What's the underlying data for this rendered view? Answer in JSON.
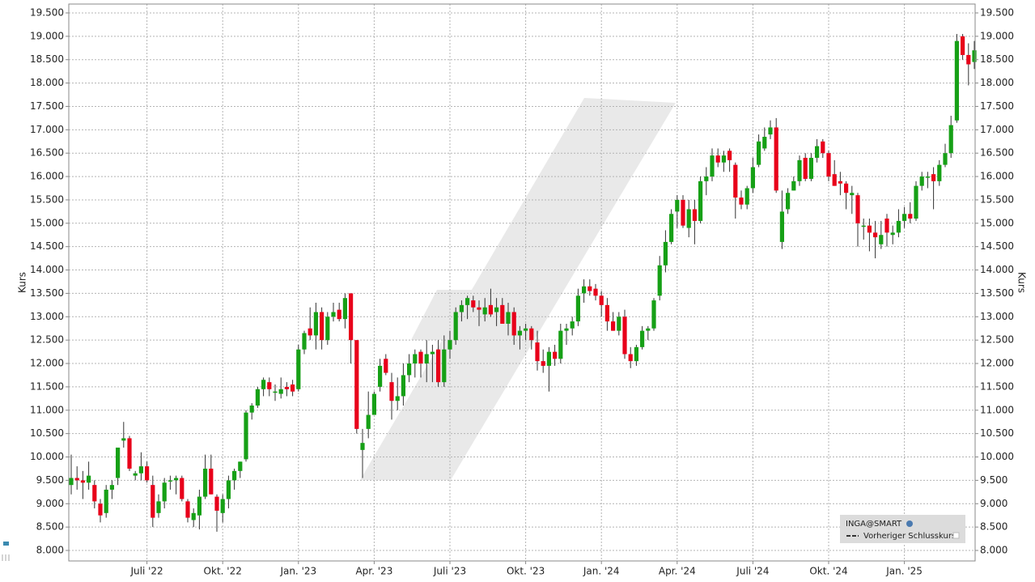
{
  "chart_data": {
    "type": "candlestick",
    "ylabel": "Kurs",
    "y2label": "Kurs",
    "series_name": "INGA@SMART",
    "reference_line_label": "Vorheriger Schlusskurs",
    "up_color": "#16a016",
    "down_color": "#e8001a",
    "grid": true,
    "ylim": [
      7775,
      19690
    ],
    "y2lim": [
      7775,
      19690
    ],
    "yticks": [
      {
        "value": 8000,
        "label": "8.000"
      },
      {
        "value": 8500,
        "label": "8.500"
      },
      {
        "value": 9000,
        "label": "9.000"
      },
      {
        "value": 9500,
        "label": "9.500"
      },
      {
        "value": 10000,
        "label": "10.000"
      },
      {
        "value": 10500,
        "label": "10.500"
      },
      {
        "value": 11000,
        "label": "11.000"
      },
      {
        "value": 11500,
        "label": "11.500"
      },
      {
        "value": 12000,
        "label": "12.000"
      },
      {
        "value": 12500,
        "label": "12.500"
      },
      {
        "value": 13000,
        "label": "13.000"
      },
      {
        "value": 13500,
        "label": "13.500"
      },
      {
        "value": 14000,
        "label": "14.000"
      },
      {
        "value": 14500,
        "label": "14.500"
      },
      {
        "value": 15000,
        "label": "15.000"
      },
      {
        "value": 15500,
        "label": "15.500"
      },
      {
        "value": 16000,
        "label": "16.000"
      },
      {
        "value": 16500,
        "label": "16.500"
      },
      {
        "value": 17000,
        "label": "17.000"
      },
      {
        "value": 17500,
        "label": "17.500"
      },
      {
        "value": 18000,
        "label": "18.000"
      },
      {
        "value": 18500,
        "label": "18.500"
      },
      {
        "value": 19000,
        "label": "19.000"
      },
      {
        "value": 19500,
        "label": "19.500"
      }
    ],
    "y2ticks": [
      {
        "value": 8000,
        "label": "8.000"
      },
      {
        "value": 8500,
        "label": "8.500"
      },
      {
        "value": 9000,
        "label": "9.000"
      },
      {
        "value": 9500,
        "label": "9.500"
      },
      {
        "value": 10000,
        "label": "10.000"
      },
      {
        "value": 10500,
        "label": "10.500"
      },
      {
        "value": 11000,
        "label": "11.000"
      },
      {
        "value": 11500,
        "label": "11.500"
      },
      {
        "value": 12000,
        "label": "12.000"
      },
      {
        "value": 12500,
        "label": "12.500"
      },
      {
        "value": 13000,
        "label": "13.000"
      },
      {
        "value": 13500,
        "label": "13.500"
      },
      {
        "value": 14000,
        "label": "14.000"
      },
      {
        "value": 14500,
        "label": "14.500"
      },
      {
        "value": 15000,
        "label": "15.000"
      },
      {
        "value": 15500,
        "label": "15.500"
      },
      {
        "value": 16000,
        "label": "16.000"
      },
      {
        "value": 16500,
        "label": "16.500"
      },
      {
        "value": 17000,
        "label": "17.000"
      },
      {
        "value": 17500,
        "label": "17.500"
      },
      {
        "value": 18000,
        "label": "18.000"
      },
      {
        "value": 18500,
        "label": "18.500"
      },
      {
        "value": 19000,
        "label": "19.000"
      },
      {
        "value": 19500,
        "label": "19.500"
      }
    ],
    "categories": [
      null,
      null,
      null,
      null,
      null,
      null,
      null,
      null,
      null,
      null,
      null,
      null,
      null,
      "Juli '22",
      null,
      null,
      null,
      null,
      null,
      null,
      null,
      null,
      null,
      null,
      null,
      null,
      "Okt. '22",
      null,
      null,
      null,
      null,
      null,
      null,
      null,
      null,
      null,
      null,
      null,
      null,
      "Jan. '23",
      null,
      null,
      null,
      null,
      null,
      null,
      null,
      null,
      null,
      null,
      null,
      null,
      "Apr. '23",
      null,
      null,
      null,
      null,
      null,
      null,
      null,
      null,
      null,
      null,
      null,
      null,
      "Juli '23",
      null,
      null,
      null,
      null,
      null,
      null,
      null,
      null,
      null,
      null,
      null,
      null,
      "Okt. '23",
      null,
      null,
      null,
      null,
      null,
      null,
      null,
      null,
      null,
      null,
      null,
      null,
      "Jan. '24",
      null,
      null,
      null,
      null,
      null,
      null,
      null,
      null,
      null,
      null,
      null,
      null,
      "Apr. '24",
      null,
      null,
      null,
      null,
      null,
      null,
      null,
      null,
      null,
      null,
      null,
      null,
      "Juli '24",
      null,
      null,
      null,
      null,
      null,
      null,
      null,
      null,
      null,
      null,
      null,
      null,
      "Okt. '24",
      null,
      null,
      null,
      null,
      null,
      null,
      null,
      null,
      null,
      null,
      null,
      null,
      "Jan. '25",
      null,
      null,
      null,
      null,
      null,
      null,
      null,
      null,
      null,
      null,
      null,
      null
    ],
    "open": [
      9400,
      9550,
      9500,
      9450,
      9400,
      9000,
      8800,
      9300,
      9550,
      10350,
      10400,
      9600,
      9650,
      9800,
      9400,
      8800,
      9050,
      9500,
      9500,
      9550,
      9050,
      8650,
      8750,
      9150,
      9750,
      9150,
      8800,
      9100,
      9500,
      9700,
      9950,
      10950,
      11100,
      11450,
      11600,
      11400,
      11350,
      11500,
      11550,
      11450,
      12300,
      12750,
      12600,
      13100,
      12500,
      13000,
      13150,
      12950,
      13500,
      12500,
      10150,
      10600,
      10900,
      11500,
      12100,
      11600,
      11200,
      11300,
      11750,
      12000,
      12250,
      12000,
      12200,
      12300,
      11600,
      12300,
      12500,
      13100,
      13250,
      13350,
      13200,
      13050,
      13250,
      13100,
      13250,
      12850,
      13100,
      12600,
      12700,
      12750,
      12450,
      12050,
      11950,
      12250,
      12100,
      12700,
      12750,
      12900,
      13500,
      13650,
      13600,
      13450,
      13250,
      12900,
      12700,
      13000,
      12200,
      12050,
      12350,
      12700,
      12750,
      13450,
      14100,
      14600,
      15250,
      15500,
      14900,
      15300,
      15050,
      15900,
      16000,
      16450,
      16300,
      16550,
      16250,
      15550,
      15400,
      15750,
      16250,
      16600,
      16900,
      17050,
      14600,
      15300,
      15700,
      15900,
      16400,
      15950,
      16400,
      16750,
      16500,
      16050,
      15900,
      15850,
      15600,
      15600,
      14950,
      14950,
      14800,
      14550,
      15100,
      14750,
      14800,
      15050,
      15200,
      15100,
      15800,
      16000,
      16050,
      15900,
      16250,
      16500,
      17200,
      19000,
      18600,
      18450
    ],
    "high": [
      10050,
      9800,
      9700,
      9900,
      9500,
      9100,
      9400,
      9500,
      10200,
      10750,
      10450,
      9700,
      10100,
      9900,
      9600,
      9200,
      9550,
      9600,
      9600,
      9600,
      9100,
      8900,
      9300,
      10050,
      10050,
      9200,
      9200,
      9600,
      9750,
      9900,
      11000,
      11150,
      11500,
      11700,
      11700,
      11550,
      11700,
      11600,
      11650,
      12400,
      12700,
      13200,
      13300,
      13200,
      13100,
      13300,
      13300,
      13500,
      13500,
      12500,
      10600,
      11400,
      11400,
      12100,
      12200,
      11800,
      11700,
      12000,
      12200,
      12300,
      12300,
      12500,
      12400,
      12500,
      12600,
      12700,
      13200,
      13350,
      13450,
      13450,
      13350,
      13400,
      13600,
      13400,
      13400,
      13300,
      13200,
      12800,
      12850,
      12800,
      12700,
      12300,
      12350,
      12400,
      12850,
      12850,
      13000,
      13600,
      13800,
      13800,
      13700,
      13550,
      13400,
      13100,
      13100,
      13150,
      12350,
      12400,
      12800,
      12800,
      13400,
      14300,
      14850,
      15300,
      15600,
      15600,
      15500,
      15500,
      16000,
      16200,
      16600,
      16600,
      16550,
      16600,
      16300,
      15700,
      15800,
      16400,
      16900,
      17050,
      17200,
      17250,
      15700,
      15750,
      16000,
      16450,
      16500,
      16500,
      16800,
      16800,
      16550,
      16350,
      16100,
      15900,
      15800,
      15650,
      15100,
      15100,
      15050,
      15050,
      15200,
      14950,
      15300,
      15350,
      15450,
      15900,
      16100,
      16100,
      16200,
      16350,
      16700,
      17300,
      19050,
      19050,
      18850,
      18900
    ],
    "low": [
      9200,
      9300,
      9100,
      9300,
      8900,
      8600,
      8700,
      9100,
      9400,
      10200,
      9700,
      9500,
      9500,
      9450,
      8500,
      8700,
      8900,
      9300,
      9200,
      9050,
      8600,
      8500,
      8450,
      9100,
      9200,
      8400,
      8600,
      8900,
      9300,
      9550,
      9900,
      10800,
      11050,
      11300,
      11300,
      11200,
      11250,
      11300,
      11300,
      11400,
      12200,
      12500,
      12300,
      12300,
      12400,
      12900,
      12900,
      12750,
      12000,
      10500,
      9550,
      10400,
      10900,
      11400,
      11750,
      10800,
      11000,
      11100,
      11600,
      11700,
      11700,
      11600,
      11600,
      11500,
      11500,
      12100,
      12400,
      12900,
      12950,
      13100,
      12800,
      12900,
      13000,
      12800,
      12900,
      12600,
      12400,
      12300,
      12500,
      12300,
      11850,
      11800,
      11400,
      11950,
      12000,
      12400,
      12600,
      12800,
      13300,
      13450,
      13350,
      13000,
      12700,
      12700,
      12600,
      12100,
      11900,
      11950,
      12300,
      12500,
      12700,
      13350,
      13950,
      14550,
      14900,
      14900,
      14700,
      14550,
      15000,
      15600,
      15900,
      16200,
      16100,
      16100,
      15100,
      15300,
      15300,
      15650,
      16200,
      16550,
      16800,
      15650,
      14450,
      15200,
      15700,
      15800,
      15900,
      15900,
      16300,
      16400,
      15900,
      15800,
      15600,
      15300,
      15200,
      14500,
      14650,
      14400,
      14250,
      14450,
      14500,
      14550,
      14700,
      14900,
      15000,
      15050,
      15700,
      15750,
      15300,
      15800,
      16200,
      16400,
      17150,
      18500,
      17950,
      18300
    ],
    "close": [
      9550,
      9500,
      9450,
      9600,
      9050,
      8750,
      9300,
      9400,
      10200,
      10400,
      9750,
      9650,
      9800,
      9500,
      8700,
      9050,
      9450,
      9500,
      9550,
      9100,
      8700,
      8800,
      9150,
      9750,
      9200,
      8850,
      9100,
      9500,
      9700,
      9900,
      10950,
      11100,
      11450,
      11650,
      11450,
      11400,
      11450,
      11450,
      11400,
      12300,
      12650,
      12600,
      13100,
      12500,
      13000,
      13100,
      12950,
      13400,
      12500,
      10600,
      10300,
      10900,
      11350,
      11950,
      11800,
      11200,
      11300,
      11750,
      12000,
      12200,
      12000,
      12200,
      12250,
      11600,
      12300,
      12500,
      13100,
      13250,
      13400,
      13200,
      13150,
      13200,
      13050,
      13200,
      12850,
      13100,
      12600,
      12700,
      12750,
      12500,
      12050,
      11950,
      12250,
      12100,
      12700,
      12750,
      12900,
      13450,
      13650,
      13550,
      13450,
      13250,
      12900,
      12700,
      13000,
      12200,
      12050,
      12350,
      12700,
      12750,
      13350,
      14100,
      14600,
      15200,
      15500,
      14950,
      15300,
      15050,
      15900,
      16000,
      16450,
      16300,
      16450,
      16350,
      15550,
      15400,
      15750,
      16200,
      16750,
      16850,
      17050,
      15700,
      15250,
      15650,
      15900,
      16350,
      15950,
      16400,
      16650,
      16500,
      16000,
      15800,
      15850,
      15650,
      15650,
      15000,
      14950,
      14800,
      14700,
      14750,
      14800,
      14800,
      15050,
      15200,
      15100,
      15800,
      16000,
      16000,
      15900,
      16250,
      16500,
      17100,
      18900,
      18600,
      18400,
      18700
    ]
  }
}
